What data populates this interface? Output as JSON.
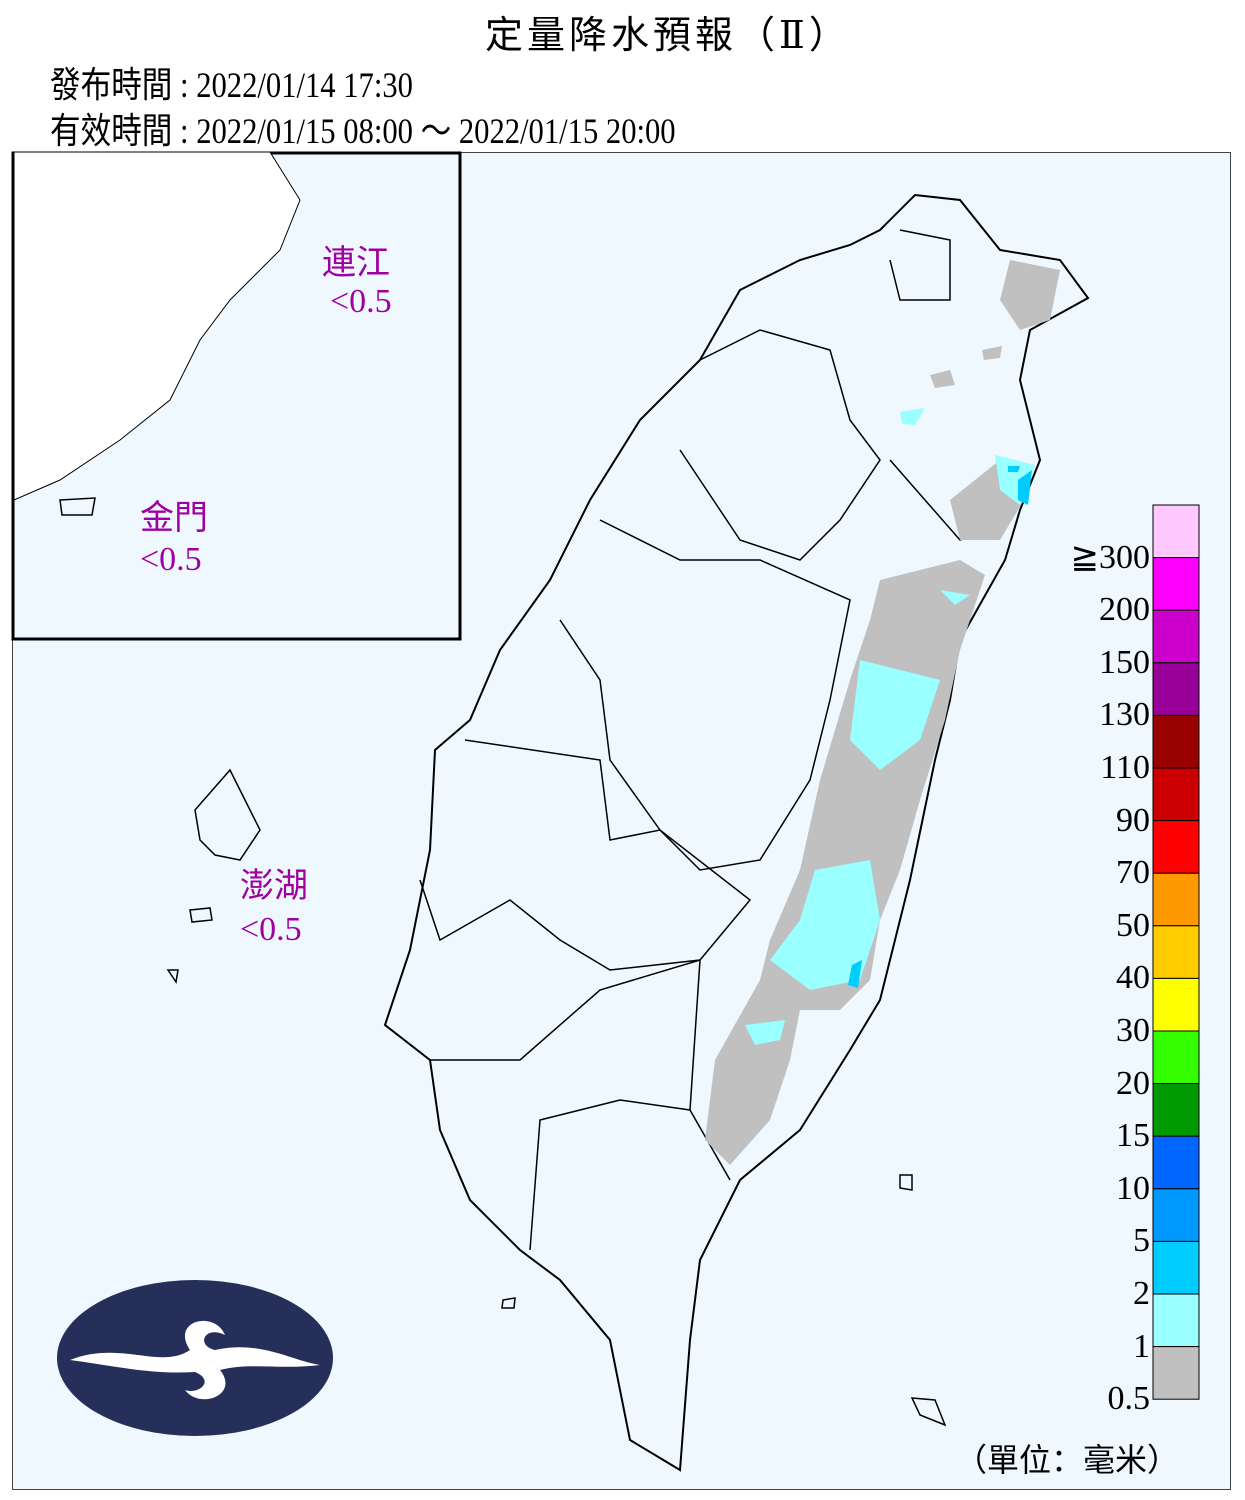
{
  "header": {
    "title": "定量降水預報（Ⅱ）",
    "issue_time": "發布時間 : 2022/01/14 17:30",
    "valid_time": "有效時間 : 2022/01/15 08:00 ～ 2022/01/15 20:00"
  },
  "regions": {
    "lienchiang": {
      "name": "連江",
      "value": "<0.5"
    },
    "kinmen": {
      "name": "金門",
      "value": "<0.5"
    },
    "penghu": {
      "name": "澎湖",
      "value": "<0.5"
    }
  },
  "legend": {
    "unit": "（單位：毫米）",
    "labels": [
      "≧300",
      "200",
      "150",
      "130",
      "110",
      "90",
      "70",
      "50",
      "40",
      "30",
      "20",
      "15",
      "10",
      "5",
      "2",
      "1",
      "0.5"
    ],
    "colors": [
      "#FFC8FF",
      "#FF00FF",
      "#CC00CC",
      "#990099",
      "#990000",
      "#CC0000",
      "#FF0000",
      "#FF9900",
      "#FFCC00",
      "#FFFF00",
      "#33FF00",
      "#009900",
      "#0066FF",
      "#0099FF",
      "#00CCFF",
      "#99FFFF",
      "#C0C0C0"
    ]
  },
  "colors": {
    "background": "#EFF8FE",
    "logo": "#262E5A",
    "region_label": "#A000A0"
  }
}
